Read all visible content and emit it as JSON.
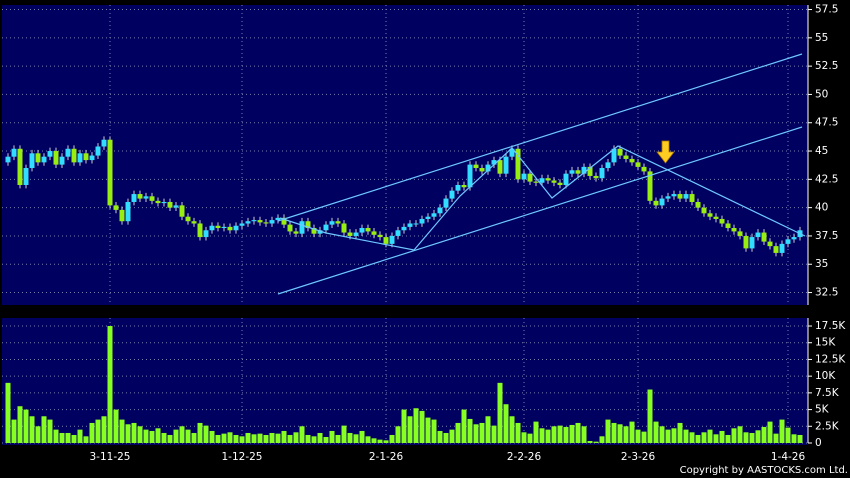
{
  "chart_data": [
    {
      "type": "candlestick",
      "categories": [
        null,
        null,
        null,
        null,
        null,
        null,
        null,
        null,
        null,
        null,
        null,
        null,
        null,
        null,
        null,
        null,
        null,
        "3-11-25",
        null,
        null,
        null,
        null,
        null,
        null,
        null,
        null,
        null,
        null,
        null,
        null,
        null,
        null,
        null,
        null,
        null,
        null,
        null,
        null,
        null,
        "1-12-25",
        null,
        null,
        null,
        null,
        null,
        null,
        null,
        null,
        null,
        null,
        null,
        null,
        null,
        null,
        null,
        null,
        null,
        null,
        null,
        null,
        null,
        null,
        null,
        "2-1-26",
        null,
        null,
        null,
        null,
        null,
        null,
        null,
        null,
        null,
        null,
        null,
        null,
        null,
        null,
        null,
        null,
        null,
        null,
        null,
        null,
        null,
        null,
        "2-2-26",
        null,
        null,
        null,
        null,
        null,
        null,
        null,
        null,
        null,
        null,
        null,
        null,
        null,
        null,
        null,
        null,
        null,
        null,
        "2-3-26",
        null,
        null,
        null,
        null,
        null,
        null,
        null,
        null,
        null,
        null,
        null,
        null,
        null,
        null,
        null,
        null,
        null,
        null,
        null,
        null,
        null,
        null,
        null,
        null,
        "1-4-26",
        null,
        null
      ],
      "open": [
        44.0,
        44.5,
        45.2,
        42.0,
        43.5,
        44.8,
        44.0,
        44.5,
        45.0,
        43.8,
        44.5,
        45.2,
        44.0,
        44.8,
        44.2,
        44.6,
        45.4,
        46.0,
        40.2,
        39.8,
        38.8,
        40.5,
        41.2,
        40.8,
        41.0,
        40.6,
        40.4,
        40.5,
        40.0,
        40.2,
        39.2,
        38.8,
        38.6,
        37.4,
        38.0,
        38.4,
        38.2,
        38.3,
        38.0,
        38.4,
        38.6,
        38.8,
        38.9,
        38.7,
        38.6,
        38.9,
        39.1,
        38.5,
        37.9,
        37.7,
        38.8,
        38.2,
        37.7,
        38.0,
        38.5,
        38.8,
        38.6,
        37.8,
        37.5,
        37.8,
        38.2,
        37.9,
        37.6,
        37.4,
        36.8,
        37.5,
        38.0,
        38.3,
        38.6,
        38.6,
        39.0,
        39.2,
        39.5,
        40.0,
        40.8,
        41.5,
        42.0,
        41.8,
        43.8,
        43.5,
        43.2,
        43.8,
        44.2,
        43.0,
        44.5,
        45.2,
        42.5,
        43.0,
        42.3,
        42.2,
        42.6,
        42.4,
        42.2,
        42.0,
        43.0,
        43.3,
        43.0,
        43.6,
        42.8,
        42.6,
        43.5,
        44.0,
        45.2,
        44.6,
        44.3,
        44.0,
        43.6,
        43.2,
        40.6,
        40.2,
        40.8,
        41.0,
        41.2,
        40.8,
        41.2,
        40.5,
        40.0,
        39.5,
        39.2,
        39.0,
        38.6,
        38.2,
        37.9,
        37.5,
        36.4,
        37.4,
        37.8,
        37.0,
        36.6,
        36.0,
        36.8,
        37.2,
        37.4
      ],
      "high": [
        44.8,
        45.5,
        45.5,
        43.8,
        45.1,
        45.1,
        44.8,
        45.3,
        45.3,
        44.8,
        45.5,
        45.5,
        45.1,
        45.1,
        44.9,
        45.7,
        46.3,
        46.3,
        40.5,
        40.1,
        40.8,
        41.5,
        41.5,
        41.3,
        41.3,
        40.9,
        40.8,
        40.8,
        40.5,
        40.5,
        39.5,
        39.1,
        38.9,
        38.3,
        38.7,
        38.7,
        38.6,
        38.6,
        38.7,
        38.9,
        39.1,
        39.2,
        39.2,
        39.0,
        39.2,
        39.4,
        39.4,
        38.8,
        38.2,
        39.1,
        39.1,
        38.5,
        38.3,
        38.8,
        39.1,
        39.1,
        38.9,
        38.1,
        38.1,
        38.5,
        38.5,
        38.2,
        37.9,
        37.7,
        37.8,
        38.3,
        38.6,
        38.9,
        38.9,
        39.3,
        39.5,
        39.8,
        40.3,
        41.1,
        41.8,
        42.3,
        42.3,
        44.1,
        44.1,
        43.8,
        44.1,
        44.5,
        44.5,
        44.8,
        45.5,
        45.5,
        43.3,
        43.3,
        42.6,
        42.9,
        42.9,
        42.7,
        42.5,
        43.3,
        43.6,
        43.6,
        43.9,
        43.9,
        43.1,
        43.8,
        44.3,
        45.5,
        45.5,
        44.9,
        44.6,
        44.3,
        43.9,
        43.5,
        40.9,
        41.1,
        41.3,
        41.5,
        41.5,
        41.5,
        41.5,
        40.8,
        40.3,
        39.8,
        39.5,
        39.3,
        38.9,
        38.5,
        38.2,
        37.8,
        37.7,
        38.1,
        38.1,
        37.3,
        36.9,
        37.1,
        37.5,
        37.7,
        38.3
      ],
      "low": [
        43.7,
        44.2,
        41.7,
        41.7,
        43.2,
        43.7,
        43.7,
        44.2,
        43.5,
        43.5,
        44.2,
        43.7,
        43.7,
        43.9,
        43.9,
        44.3,
        45.1,
        39.9,
        39.5,
        38.5,
        38.5,
        40.2,
        40.5,
        40.5,
        40.3,
        40.1,
        40.1,
        39.7,
        39.7,
        38.9,
        38.5,
        38.3,
        37.1,
        37.1,
        37.7,
        37.9,
        37.9,
        37.7,
        37.7,
        38.1,
        38.3,
        38.5,
        38.4,
        38.3,
        38.3,
        38.6,
        38.2,
        37.6,
        37.4,
        37.4,
        37.9,
        37.4,
        37.4,
        37.7,
        38.2,
        38.3,
        37.5,
        37.2,
        37.2,
        37.5,
        37.6,
        37.3,
        37.1,
        36.5,
        36.5,
        37.2,
        37.7,
        38.0,
        38.3,
        38.3,
        38.7,
        38.9,
        39.2,
        39.7,
        40.5,
        41.2,
        41.5,
        41.5,
        43.2,
        42.9,
        42.9,
        43.5,
        42.7,
        42.7,
        44.2,
        42.2,
        42.2,
        42.0,
        41.9,
        41.9,
        42.1,
        41.9,
        41.7,
        41.7,
        42.7,
        42.7,
        42.7,
        42.5,
        42.3,
        42.3,
        43.2,
        43.7,
        44.3,
        44.0,
        43.7,
        43.3,
        42.9,
        40.3,
        39.9,
        39.9,
        40.5,
        40.7,
        40.5,
        40.5,
        40.2,
        39.7,
        39.2,
        38.9,
        38.7,
        38.3,
        37.9,
        37.6,
        37.2,
        36.1,
        36.1,
        37.1,
        36.7,
        36.3,
        35.7,
        35.7,
        36.5,
        36.9,
        37.1
      ],
      "close": [
        44.5,
        45.2,
        42.0,
        43.5,
        44.8,
        44.0,
        44.5,
        45.0,
        43.8,
        44.5,
        45.2,
        44.0,
        44.8,
        44.2,
        44.6,
        45.4,
        46.0,
        40.2,
        39.8,
        38.8,
        40.5,
        41.2,
        40.8,
        41.0,
        40.6,
        40.4,
        40.5,
        40.0,
        40.2,
        39.2,
        38.8,
        38.6,
        37.4,
        38.0,
        38.4,
        38.2,
        38.3,
        38.0,
        38.4,
        38.6,
        38.8,
        38.9,
        38.7,
        38.6,
        38.9,
        39.1,
        38.5,
        37.9,
        37.7,
        38.8,
        38.2,
        37.7,
        38.0,
        38.5,
        38.8,
        38.6,
        37.8,
        37.5,
        37.8,
        38.2,
        37.9,
        37.6,
        37.4,
        36.8,
        37.5,
        38.0,
        38.3,
        38.6,
        38.6,
        39.0,
        39.2,
        39.5,
        40.0,
        40.8,
        41.5,
        42.0,
        41.8,
        43.8,
        43.5,
        43.2,
        43.8,
        44.2,
        43.0,
        44.5,
        45.2,
        42.5,
        43.0,
        42.3,
        42.2,
        42.6,
        42.4,
        42.2,
        42.0,
        43.0,
        43.3,
        43.0,
        43.6,
        42.8,
        42.6,
        43.5,
        44.0,
        45.2,
        44.6,
        44.3,
        44.0,
        43.6,
        43.2,
        40.6,
        40.2,
        40.8,
        41.0,
        41.2,
        40.8,
        41.2,
        40.5,
        40.0,
        39.5,
        39.2,
        39.0,
        38.6,
        38.2,
        37.9,
        37.5,
        36.4,
        37.4,
        37.8,
        37.0,
        36.6,
        36.0,
        36.8,
        37.2,
        37.4,
        38.0
      ],
      "up_color": "#33ddff",
      "down_color": "#99ee11",
      "ylim": [
        31.4,
        57.9
      ],
      "yticks": [
        32.5,
        35,
        37.5,
        40,
        42.5,
        45,
        47.5,
        50,
        52.5,
        55,
        57.5
      ],
      "grid": true
    },
    {
      "type": "bar",
      "values": [
        9000,
        3500,
        5500,
        5000,
        4000,
        2500,
        4000,
        3500,
        2000,
        1500,
        1500,
        1200,
        2000,
        1000,
        3000,
        3500,
        4000,
        17500,
        5000,
        3500,
        2800,
        3000,
        2500,
        2000,
        1800,
        2200,
        1500,
        1200,
        2000,
        2500,
        2000,
        1500,
        3000,
        2600,
        1800,
        1200,
        1400,
        1600,
        1200,
        1000,
        1500,
        1300,
        1400,
        1200,
        1500,
        1400,
        1800,
        1200,
        1600,
        2500,
        1200,
        1000,
        1500,
        900,
        1800,
        1200,
        2600,
        1500,
        1300,
        1800,
        1000,
        700,
        500,
        400,
        1200,
        2500,
        5000,
        4000,
        5200,
        4800,
        3800,
        3500,
        1800,
        1500,
        2000,
        3000,
        5000,
        3600,
        2800,
        3000,
        4000,
        2600,
        9000,
        5800,
        4000,
        3000,
        1600,
        1400,
        3200,
        2200,
        2000,
        2500,
        2600,
        2400,
        2700,
        3000,
        2500,
        300,
        200,
        1000,
        3500,
        3000,
        2800,
        2500,
        3200,
        2000,
        1700,
        8000,
        3200,
        2500,
        2000,
        2200,
        3000,
        2000,
        1600,
        1200,
        1600,
        2000,
        1300,
        1800,
        1200,
        2200,
        2500,
        1600,
        1500,
        1900,
        2400,
        3200,
        1400,
        3500,
        2300,
        1300,
        1200
      ],
      "color": "#88ff22",
      "ylim": [
        0,
        18700
      ],
      "yticks": [
        0,
        {
          "value": 2500,
          "label": "2.5K"
        },
        {
          "value": 5000,
          "label": "5K"
        },
        {
          "value": 7500,
          "label": "7.5K"
        },
        {
          "value": 10000,
          "label": "10K"
        },
        {
          "value": 12500,
          "label": "12.5K"
        },
        {
          "value": 15000,
          "label": "15K"
        },
        {
          "value": 17500,
          "label": "17.5K"
        }
      ],
      "grid": true,
      "source": "Copyright by AASTOCKS.com Ltd."
    }
  ]
}
